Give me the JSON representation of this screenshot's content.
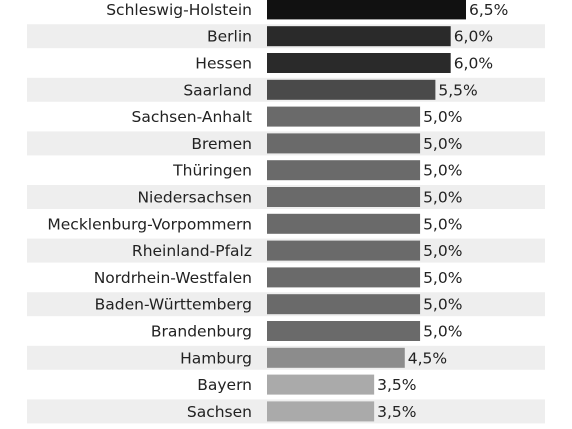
{
  "chart_data": {
    "type": "bar",
    "orientation": "horizontal",
    "categories": [
      "Schleswig-Holstein",
      "Berlin",
      "Hessen",
      "Saarland",
      "Sachsen-Anhalt",
      "Bremen",
      "Thüringen",
      "Niedersachsen",
      "Mecklenburg-Vorpommern",
      "Rheinland-Pfalz",
      "Nordrhein-Westfalen",
      "Baden-Württemberg",
      "Brandenburg",
      "Hamburg",
      "Bayern",
      "Sachsen"
    ],
    "values": [
      6.5,
      6.0,
      6.0,
      5.5,
      5.0,
      5.0,
      5.0,
      5.0,
      5.0,
      5.0,
      5.0,
      5.0,
      5.0,
      4.5,
      3.5,
      3.5
    ],
    "value_labels": [
      "6,5%",
      "6,0%",
      "6,0%",
      "5,5%",
      "5,0%",
      "5,0%",
      "5,0%",
      "5,0%",
      "5,0%",
      "5,0%",
      "5,0%",
      "5,0%",
      "5,0%",
      "4,5%",
      "3,5%",
      "3,5%"
    ],
    "bar_colors": [
      "#111111",
      "#2a2a2a",
      "#2a2a2a",
      "#4a4a4a",
      "#6a6a6a",
      "#6a6a6a",
      "#6a6a6a",
      "#6a6a6a",
      "#6a6a6a",
      "#6a6a6a",
      "#6a6a6a",
      "#6a6a6a",
      "#6a6a6a",
      "#8c8c8c",
      "#aaaaaa",
      "#aaaaaa"
    ],
    "title": "",
    "xlabel": "",
    "ylabel": "",
    "xlim": [
      0,
      6.5
    ],
    "grid": false,
    "legend": "none",
    "band_color": "#eeeeee"
  }
}
